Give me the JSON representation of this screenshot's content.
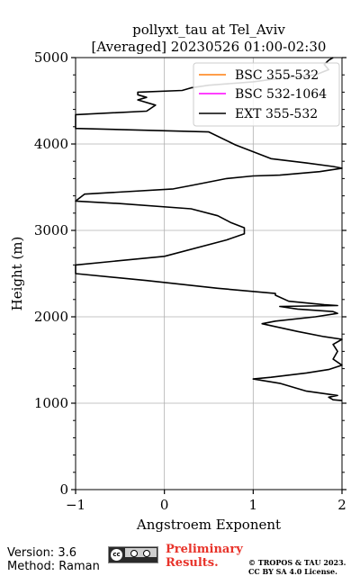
{
  "chart_data": {
    "type": "line",
    "title_line1": "pollyxt_tau at Tel_Aviv",
    "title_line2": "[Averaged] 20230526 01:00-02:30",
    "xlabel": "Angstroem Exponent",
    "ylabel": "Height (m)",
    "xlim": [
      -1,
      2
    ],
    "ylim": [
      0,
      5000
    ],
    "x_ticks": [
      -1,
      0,
      1,
      2
    ],
    "x_tick_labels": [
      "−1",
      "0",
      "1",
      "2"
    ],
    "y_ticks": [
      0,
      1000,
      2000,
      3000,
      4000,
      5000
    ],
    "y_tick_labels": [
      "0",
      "1000",
      "2000",
      "3000",
      "4000",
      "5000"
    ],
    "grid": true,
    "legend_position": "top-right",
    "series": [
      {
        "name": "BSC 355-532",
        "color": "#ff7f0e",
        "points": []
      },
      {
        "name": "BSC 532-1064",
        "color": "#ff00ff",
        "points": []
      },
      {
        "name": "EXT 355-532",
        "color": "#000000",
        "points": [
          [
            2.0,
            1030
          ],
          [
            1.9,
            1040
          ],
          [
            1.85,
            1070
          ],
          [
            1.95,
            1090
          ],
          [
            1.6,
            1140
          ],
          [
            1.3,
            1230
          ],
          [
            1.0,
            1280
          ],
          [
            1.2,
            1300
          ],
          [
            1.6,
            1350
          ],
          [
            1.85,
            1390
          ],
          [
            2.0,
            1440
          ],
          [
            1.9,
            1510
          ],
          [
            1.95,
            1600
          ],
          [
            1.9,
            1680
          ],
          [
            2.0,
            1740
          ],
          [
            1.8,
            1770
          ],
          [
            1.5,
            1830
          ],
          [
            1.1,
            1920
          ],
          [
            1.25,
            1950
          ],
          [
            1.7,
            2000
          ],
          [
            1.95,
            2040
          ],
          [
            1.9,
            2060
          ],
          [
            1.5,
            2090
          ],
          [
            1.3,
            2120
          ],
          [
            1.95,
            2130
          ],
          [
            1.8,
            2140
          ],
          [
            1.4,
            2180
          ],
          [
            1.25,
            2250
          ],
          [
            1.25,
            2270
          ],
          [
            0.6,
            2330
          ],
          [
            -0.2,
            2420
          ],
          [
            -1.0,
            2500
          ],
          [
            -1.0,
            2600
          ],
          [
            0.0,
            2700
          ],
          [
            0.7,
            2890
          ],
          [
            0.9,
            2960
          ],
          [
            0.9,
            3030
          ],
          [
            0.75,
            3090
          ],
          [
            0.6,
            3170
          ],
          [
            0.3,
            3250
          ],
          [
            -0.5,
            3310
          ],
          [
            -1.0,
            3340
          ],
          [
            -0.9,
            3420
          ],
          [
            0.1,
            3480
          ],
          [
            0.3,
            3520
          ],
          [
            0.7,
            3600
          ],
          [
            1.0,
            3630
          ],
          [
            1.3,
            3640
          ],
          [
            1.75,
            3680
          ],
          [
            2.0,
            3720
          ],
          [
            1.9,
            3740
          ],
          [
            1.6,
            3780
          ],
          [
            1.2,
            3830
          ],
          [
            0.8,
            3990
          ],
          [
            0.5,
            4140
          ],
          [
            -1.0,
            4180
          ],
          [
            -1.0,
            4340
          ],
          [
            -0.2,
            4380
          ],
          [
            -0.1,
            4450
          ],
          [
            -0.3,
            4510
          ],
          [
            -0.2,
            4540
          ],
          [
            -0.3,
            4570
          ],
          [
            -0.3,
            4600
          ],
          [
            0.2,
            4620
          ],
          [
            0.3,
            4650
          ],
          [
            0.5,
            4680
          ],
          [
            1.0,
            4720
          ],
          [
            1.3,
            4760
          ],
          [
            1.7,
            4800
          ],
          [
            1.85,
            4860
          ],
          [
            1.8,
            4920
          ],
          [
            1.85,
            4970
          ],
          [
            1.9,
            5000
          ]
        ]
      }
    ]
  },
  "footer": {
    "version": "Version: 3.6",
    "method": "Method: Raman",
    "cc_badge_text": "cc",
    "preliminary_line1": "Preliminary",
    "preliminary_line2": "Results.",
    "copyright_line1": "© TROPOS & TAU 2023.",
    "copyright_line2": "CC BY SA 4.0 License."
  }
}
